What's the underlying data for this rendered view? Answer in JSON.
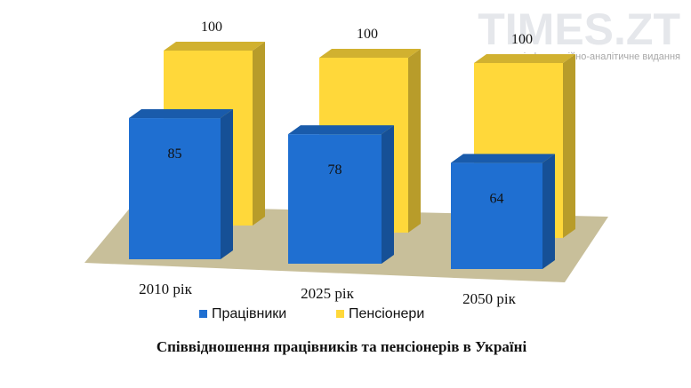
{
  "watermark": {
    "title": "TIMES.ZT",
    "subtitle": "інформаційно-аналітичне видання"
  },
  "chart_data": {
    "type": "bar",
    "categories": [
      "2010 рік",
      "2025 рік",
      "2050 рік"
    ],
    "series": [
      {
        "name": "Працівники",
        "values": [
          85,
          78,
          64
        ],
        "color": "#1f6fd1"
      },
      {
        "name": "Пенсіонери",
        "values": [
          100,
          100,
          100
        ],
        "color": "#ffd83a"
      }
    ],
    "title": "Співвідношення працівників та пенсіонерів в Україні",
    "xlabel": "",
    "ylabel": "",
    "ylim": [
      0,
      100
    ],
    "grid": false,
    "legend_position": "bottom",
    "floor_color": "#c8bf9a"
  }
}
